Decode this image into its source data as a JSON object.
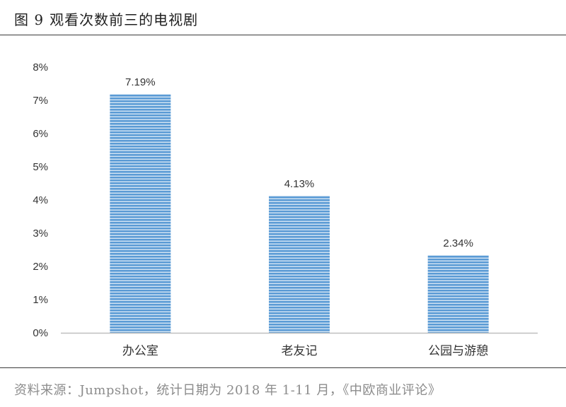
{
  "figure": {
    "number_label": "图 9",
    "title": "观看次数前三的电视剧",
    "source": "资料来源：Jumpshot，统计日期为 2018 年 1-11 月，《中欧商业评论》"
  },
  "colors": {
    "bar_fill": "#5b9bd5",
    "bar_stripe": "#ffffff",
    "axis": "#bfbfbf",
    "text": "#333333"
  },
  "chart_data": {
    "type": "bar",
    "title": "观看次数前三的电视剧",
    "xlabel": "",
    "ylabel": "",
    "categories": [
      "办公室",
      "老友记",
      "公园与游憩"
    ],
    "values": [
      7.19,
      4.13,
      2.34
    ],
    "data_labels": [
      "7.19%",
      "4.13%",
      "2.34%"
    ],
    "ylim": [
      0,
      8
    ],
    "yticks": [
      0,
      1,
      2,
      3,
      4,
      5,
      6,
      7,
      8
    ],
    "ytick_labels": [
      "0%",
      "1%",
      "2%",
      "3%",
      "4%",
      "5%",
      "6%",
      "7%",
      "8%"
    ],
    "grid": false,
    "legend": "none",
    "bar_pattern": "horizontal-stripes"
  }
}
